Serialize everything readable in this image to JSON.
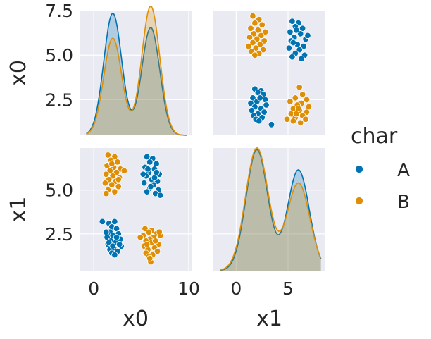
{
  "chart_data": {
    "type": "pairplot",
    "variables": [
      "x0",
      "x1"
    ],
    "hue": "char",
    "grid": true,
    "legend_position": "right",
    "legend": {
      "title": "char",
      "entries": [
        {
          "label": "A",
          "color": "#0173b2"
        },
        {
          "label": "B",
          "color": "#de8f05"
        }
      ]
    },
    "axes": {
      "x0": {
        "range": [
          -1.5,
          10.3
        ],
        "ticks": [
          0,
          10
        ],
        "tick_labels": [
          "0",
          "10"
        ],
        "label": "x0"
      },
      "x1": {
        "range": [
          0.5,
          7.5
        ],
        "ticks": [
          2.5,
          5.0,
          7.5
        ],
        "tick_labels": [
          "2.5",
          "5.0",
          "7.5"
        ],
        "label": "x1",
        "as_x_range": [
          -2.2,
          8.6
        ],
        "as_x_ticks": [
          0,
          5
        ],
        "as_x_tick_labels": [
          "0",
          "5"
        ]
      },
      "x0_as_y": {
        "range": [
          0.5,
          7.5
        ],
        "ticks": [
          2.5,
          5.0,
          7.5
        ],
        "tick_labels": [
          "2.5",
          "5.0",
          "7.5"
        ],
        "label": "x0"
      },
      "x1_as_y": {
        "range": [
          0.4,
          7.4
        ],
        "ticks": [
          2.5,
          5.0
        ],
        "tick_labels": [
          "2.5",
          "5.0"
        ],
        "label": "x1"
      }
    },
    "scatter_x1_vs_x0": {
      "A": [
        [
          1.6,
          3.1
        ],
        [
          2.2,
          3.2
        ],
        [
          1.9,
          2.9
        ],
        [
          2.4,
          2.8
        ],
        [
          1.7,
          2.6
        ],
        [
          2.6,
          2.5
        ],
        [
          2.0,
          2.4
        ],
        [
          1.4,
          2.3
        ],
        [
          2.8,
          2.2
        ],
        [
          1.8,
          2.1
        ],
        [
          2.3,
          2.0
        ],
        [
          1.5,
          1.9
        ],
        [
          2.9,
          1.8
        ],
        [
          2.1,
          1.7
        ],
        [
          1.7,
          1.6
        ],
        [
          2.5,
          1.5
        ],
        [
          1.9,
          1.4
        ],
        [
          2.2,
          1.3
        ],
        [
          0.9,
          3.2
        ],
        [
          2.7,
          1.9
        ],
        [
          1.6,
          2.0
        ],
        [
          2.4,
          2.3
        ],
        [
          2.0,
          1.8
        ],
        [
          1.3,
          2.6
        ],
        [
          5.6,
          6.9
        ],
        [
          6.2,
          6.8
        ],
        [
          5.9,
          6.6
        ],
        [
          6.6,
          6.5
        ],
        [
          5.4,
          6.3
        ],
        [
          6.4,
          6.2
        ],
        [
          5.8,
          6.0
        ],
        [
          6.9,
          5.9
        ],
        [
          5.5,
          5.8
        ],
        [
          6.1,
          5.6
        ],
        [
          6.7,
          5.5
        ],
        [
          5.3,
          5.4
        ],
        [
          6.3,
          5.3
        ],
        [
          5.9,
          5.1
        ],
        [
          6.8,
          5.0
        ],
        [
          5.6,
          4.9
        ],
        [
          6.5,
          4.8
        ],
        [
          7.0,
          4.7
        ],
        [
          5.2,
          5.9
        ],
        [
          6.0,
          5.2
        ],
        [
          6.4,
          5.7
        ],
        [
          5.7,
          6.2
        ],
        [
          6.6,
          6.0
        ]
      ],
      "B": [
        [
          1.5,
          7.0
        ],
        [
          2.2,
          6.9
        ],
        [
          1.8,
          6.7
        ],
        [
          2.5,
          6.6
        ],
        [
          1.4,
          6.4
        ],
        [
          2.1,
          6.3
        ],
        [
          2.8,
          6.2
        ],
        [
          1.7,
          6.1
        ],
        [
          2.4,
          6.0
        ],
        [
          1.3,
          5.9
        ],
        [
          2.0,
          5.8
        ],
        [
          2.7,
          5.7
        ],
        [
          1.6,
          5.6
        ],
        [
          2.3,
          5.5
        ],
        [
          1.2,
          5.4
        ],
        [
          1.9,
          5.3
        ],
        [
          2.6,
          5.2
        ],
        [
          1.5,
          5.0
        ],
        [
          2.2,
          4.9
        ],
        [
          1.3,
          4.8
        ],
        [
          3.2,
          6.1
        ],
        [
          1.9,
          6.5
        ],
        [
          2.6,
          5.6
        ],
        [
          5.4,
          2.8
        ],
        [
          6.1,
          2.7
        ],
        [
          5.8,
          2.6
        ],
        [
          6.6,
          2.5
        ],
        [
          5.2,
          2.4
        ],
        [
          6.3,
          2.3
        ],
        [
          5.9,
          2.2
        ],
        [
          7.0,
          2.4
        ],
        [
          5.5,
          2.1
        ],
        [
          6.1,
          2.0
        ],
        [
          6.8,
          1.9
        ],
        [
          5.3,
          1.8
        ],
        [
          6.4,
          1.7
        ],
        [
          5.7,
          1.6
        ],
        [
          6.7,
          1.5
        ],
        [
          5.5,
          1.4
        ],
        [
          6.2,
          1.3
        ],
        [
          5.8,
          1.2
        ],
        [
          6.0,
          0.9
        ],
        [
          6.5,
          2.1
        ],
        [
          5.6,
          1.9
        ],
        [
          6.9,
          2.6
        ],
        [
          5.9,
          1.1
        ],
        [
          4.9,
          2.3
        ]
      ]
    },
    "scatter_x0_vs_x1": {
      "A": [
        [
          5.4,
          6.9
        ],
        [
          6.0,
          6.8
        ],
        [
          5.7,
          6.6
        ],
        [
          6.4,
          6.5
        ],
        [
          5.2,
          6.3
        ],
        [
          6.2,
          6.2
        ],
        [
          5.6,
          6.0
        ],
        [
          6.7,
          5.9
        ],
        [
          5.3,
          5.8
        ],
        [
          5.9,
          5.6
        ],
        [
          6.5,
          5.5
        ],
        [
          5.1,
          5.4
        ],
        [
          6.1,
          5.3
        ],
        [
          5.7,
          5.1
        ],
        [
          6.6,
          5.0
        ],
        [
          5.4,
          4.9
        ],
        [
          6.3,
          4.8
        ],
        [
          5.8,
          6.4
        ],
        [
          6.9,
          6.1
        ],
        [
          5.5,
          5.7
        ],
        [
          1.8,
          3.1
        ],
        [
          2.4,
          3.0
        ],
        [
          2.1,
          2.9
        ],
        [
          2.6,
          2.8
        ],
        [
          1.6,
          2.6
        ],
        [
          2.8,
          2.5
        ],
        [
          2.0,
          2.4
        ],
        [
          1.4,
          2.3
        ],
        [
          2.9,
          2.2
        ],
        [
          1.8,
          2.1
        ],
        [
          2.4,
          2.0
        ],
        [
          1.5,
          1.9
        ],
        [
          2.7,
          1.8
        ],
        [
          2.1,
          1.7
        ],
        [
          1.7,
          1.6
        ],
        [
          2.5,
          1.5
        ],
        [
          1.9,
          1.4
        ],
        [
          2.2,
          1.3
        ],
        [
          3.4,
          1.1
        ],
        [
          2.3,
          2.6
        ]
      ],
      "B": [
        [
          1.6,
          7.2
        ],
        [
          2.2,
          7.0
        ],
        [
          1.8,
          6.8
        ],
        [
          2.5,
          6.7
        ],
        [
          1.4,
          6.5
        ],
        [
          2.1,
          6.4
        ],
        [
          2.8,
          6.3
        ],
        [
          1.7,
          6.2
        ],
        [
          2.4,
          6.1
        ],
        [
          1.3,
          6.0
        ],
        [
          2.0,
          5.9
        ],
        [
          2.7,
          5.8
        ],
        [
          1.6,
          5.7
        ],
        [
          2.3,
          5.6
        ],
        [
          1.2,
          5.5
        ],
        [
          1.9,
          5.4
        ],
        [
          2.6,
          5.3
        ],
        [
          1.5,
          5.2
        ],
        [
          2.2,
          5.1
        ],
        [
          1.8,
          5.0
        ],
        [
          6.1,
          3.2
        ],
        [
          6.4,
          2.8
        ],
        [
          5.7,
          2.6
        ],
        [
          6.8,
          2.5
        ],
        [
          5.2,
          2.4
        ],
        [
          6.3,
          2.3
        ],
        [
          5.9,
          2.2
        ],
        [
          7.0,
          2.1
        ],
        [
          5.5,
          2.0
        ],
        [
          6.1,
          1.9
        ],
        [
          6.8,
          1.8
        ],
        [
          5.3,
          1.7
        ],
        [
          6.4,
          1.6
        ],
        [
          5.7,
          1.5
        ],
        [
          6.7,
          1.4
        ],
        [
          5.5,
          1.3
        ],
        [
          6.2,
          1.2
        ],
        [
          4.9,
          1.4
        ],
        [
          6.0,
          2.0
        ],
        [
          5.8,
          1.7
        ]
      ]
    },
    "kde_x0": {
      "A": {
        "peaks": [
          [
            2.0,
            6.85
          ],
          [
            6.0,
            6.05
          ]
        ],
        "width": 0.95
      },
      "B": {
        "peaks": [
          [
            2.0,
            5.45
          ],
          [
            6.0,
            7.25
          ]
        ],
        "width": 0.95
      }
    },
    "kde_x1": {
      "A": {
        "peaks": [
          [
            2.0,
            6.9
          ],
          [
            6.0,
            5.75
          ]
        ],
        "width": 1.05
      },
      "B": {
        "peaks": [
          [
            2.0,
            7.0
          ],
          [
            6.0,
            5.0
          ]
        ],
        "width": 1.1
      }
    }
  }
}
